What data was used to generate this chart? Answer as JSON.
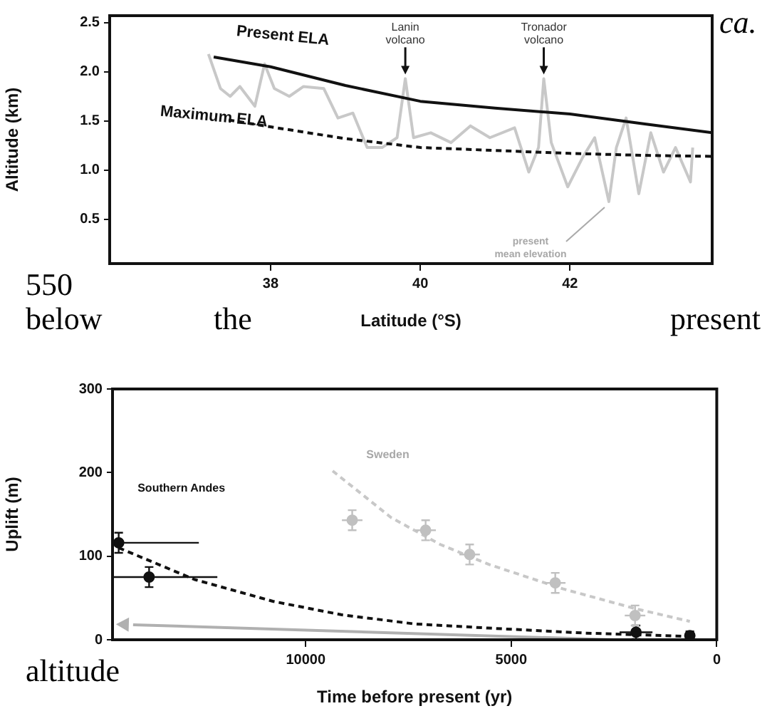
{
  "chart_data": [
    {
      "type": "line",
      "xlabel": "Latitude (°S)",
      "ylabel": "Altitude (km)",
      "xlim": [
        35.85,
        43.9
      ],
      "ylim": [
        0.05,
        2.57
      ],
      "xticks": [
        38,
        40,
        42
      ],
      "yticks": [
        {
          "value": 0.5,
          "label": "0.5"
        },
        {
          "value": 1,
          "label": "1.0"
        },
        {
          "value": 1.5,
          "label": "1.5"
        },
        {
          "value": 2,
          "label": "2.0"
        },
        {
          "value": 2.5,
          "label": "2.5"
        }
      ],
      "series": [
        {
          "name": "Present ELA",
          "color": "#111111",
          "line_style": "solid",
          "marker": "none",
          "x": [
            37.24,
            38,
            39,
            40,
            41,
            42,
            43,
            43.9
          ],
          "values": [
            2.15,
            2.05,
            1.86,
            1.7,
            1.63,
            1.57,
            1.47,
            1.38
          ]
        },
        {
          "name": "Maximum ELA",
          "color": "#111111",
          "line_style": "dashed",
          "marker": "none",
          "x": [
            37.44,
            38,
            39,
            40,
            41,
            42,
            43,
            43.9
          ],
          "values": [
            1.51,
            1.44,
            1.32,
            1.23,
            1.2,
            1.17,
            1.15,
            1.14
          ]
        },
        {
          "name": "present mean elevation",
          "color": "#c8c8c8",
          "line_style": "solid",
          "marker": "none",
          "x": [
            37.17,
            37.33,
            37.46,
            37.59,
            37.79,
            37.92,
            38.05,
            38.25,
            38.44,
            38.71,
            38.9,
            39.1,
            39.29,
            39.49,
            39.69,
            39.8,
            39.91,
            40.14,
            40.41,
            40.67,
            40.93,
            41.26,
            41.45,
            41.58,
            41.65,
            41.75,
            41.97,
            42.17,
            42.33,
            42.52,
            42.62,
            42.75,
            42.92,
            43.08,
            43.25,
            43.41,
            43.61,
            43.64
          ],
          "values": [
            2.18,
            1.83,
            1.75,
            1.85,
            1.65,
            2.08,
            1.83,
            1.75,
            1.85,
            1.83,
            1.53,
            1.58,
            1.23,
            1.23,
            1.33,
            1.93,
            1.33,
            1.38,
            1.28,
            1.45,
            1.33,
            1.43,
            0.98,
            1.23,
            1.93,
            1.28,
            0.83,
            1.13,
            1.33,
            0.68,
            1.23,
            1.53,
            0.76,
            1.38,
            0.98,
            1.23,
            0.88,
            1.23
          ]
        }
      ],
      "annotations": [
        {
          "text": "Lanin volcano",
          "x": 39.8,
          "y": 1.93
        },
        {
          "text": "Tronador volcano",
          "x": 41.65,
          "y": 1.93
        },
        "ca.",
        "550",
        "below the present"
      ]
    },
    {
      "type": "scatter",
      "xlabel": "Time before present (yr)",
      "ylabel": "Uplift (m)",
      "xlim": [
        14700,
        0
      ],
      "ylim": [
        0,
        300
      ],
      "xticks": [
        10000,
        5000,
        0
      ],
      "yticks": [
        0,
        100,
        200,
        300
      ],
      "series": [
        {
          "name": "Southern Andes",
          "color": "#111111",
          "marker": "circle",
          "x": [
            14550,
            13810,
            1964,
            655
          ],
          "values": [
            116,
            75,
            9,
            5
          ],
          "errors": [
            12,
            12,
            8,
            5
          ],
          "xerrors": [
            [
              12600,
              14550
            ],
            [
              12150,
              14680
            ],
            400,
            null
          ]
        },
        {
          "color": "#111111",
          "type": "line",
          "line_style": "dashed",
          "marker": "none",
          "x": [
            14550,
            12700,
            10800,
            9140,
            7360,
            5570,
            3200,
            655
          ],
          "values": [
            110,
            72,
            46,
            30,
            19,
            14,
            8,
            4
          ]
        },
        {
          "name": "Sweden",
          "color": "#c0c0c0",
          "marker": "circle",
          "x": [
            8869,
            7083,
            6012,
            3929,
            1988
          ],
          "values": [
            143,
            131,
            102,
            68,
            29
          ],
          "errors": [
            12,
            12,
            12,
            12,
            12
          ],
          "xerrors": [
            250,
            250,
            250,
            250,
            250
          ]
        },
        {
          "color": "#c8c8c8",
          "type": "line",
          "line_style": "dashed",
          "marker": "none",
          "x": [
            9345,
            7917,
            6726,
            5536,
            3750,
            1964,
            655
          ],
          "values": [
            202,
            146,
            114,
            90,
            61,
            37,
            22
          ]
        },
        {
          "color": "#b0b0b0",
          "type": "line",
          "line_style": "solid",
          "marker": "none",
          "x": [
            2500,
            14200
          ],
          "values": [
            0,
            18
          ]
        }
      ],
      "annotations": [
        "altitude"
      ]
    }
  ]
}
